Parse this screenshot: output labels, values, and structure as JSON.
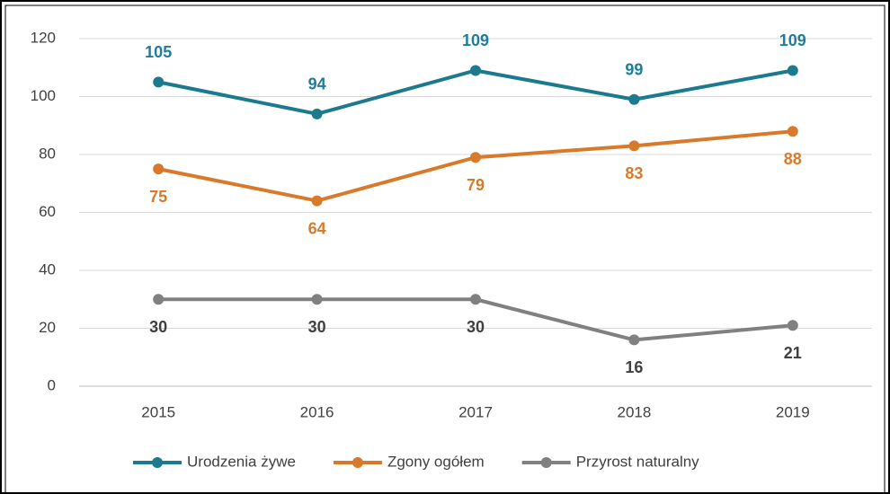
{
  "chart_data": {
    "type": "line",
    "categories": [
      "2015",
      "2016",
      "2017",
      "2018",
      "2019"
    ],
    "series": [
      {
        "name": "Urodzenia żywe",
        "color": "#1b7a8e",
        "label_color": "#1e7d9b",
        "label_position": "above",
        "values": [
          105,
          94,
          109,
          99,
          109
        ]
      },
      {
        "name": "Zgony ogółem",
        "color": "#d97a2b",
        "label_color": "#d97a2b",
        "label_position": "below",
        "values": [
          75,
          64,
          79,
          83,
          88
        ]
      },
      {
        "name": "Przyrost naturalny",
        "color": "#808080",
        "label_color": "#404040",
        "label_position": "below",
        "values": [
          30,
          30,
          30,
          16,
          21
        ]
      }
    ],
    "ylim": [
      0,
      120
    ],
    "yticks": [
      0,
      20,
      40,
      60,
      80,
      100,
      120
    ],
    "grid": true,
    "legend": "bottom"
  }
}
